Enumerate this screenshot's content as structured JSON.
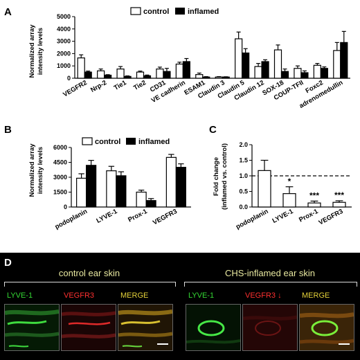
{
  "panel_a": {
    "letter": "A",
    "ylabel_lines": [
      "Normalized array",
      "intensity levels"
    ],
    "legend": [
      "control",
      "inflamed"
    ]
  },
  "panel_b": {
    "letter": "B",
    "ylabel_lines": [
      "Normalized array",
      "intensity levels"
    ],
    "legend": [
      "control",
      "inflamed"
    ]
  },
  "panel_c": {
    "letter": "C",
    "ylabel_lines": [
      "Fold change",
      "(inflamed vs. control)"
    ]
  },
  "panel_d": {
    "letter": "D",
    "groups": [
      {
        "title": "control ear skin",
        "channels": [
          {
            "label": "LYVE-1",
            "color": "#34d834"
          },
          {
            "label": "VEGFR3",
            "color": "#ff3030"
          },
          {
            "label": "MERGE",
            "color": "#e5d23a"
          }
        ]
      },
      {
        "title": "CHS-inflamed ear skin",
        "channels": [
          {
            "label": "LYVE-1",
            "color": "#34d834"
          },
          {
            "label": "VEGFR3 ↓",
            "color": "#ff3030"
          },
          {
            "label": "MERGE",
            "color": "#e5d23a"
          }
        ]
      }
    ]
  },
  "chart_data": [
    {
      "type": "bar",
      "panel": "A",
      "categories": [
        "VEGFR2",
        "Nrp-2",
        "Tie1",
        "Tie2",
        "CD31",
        "VE cadherin",
        "ESAM1",
        "Claudin 3",
        "Claudin 5",
        "Claudin 12",
        "SOX-18",
        "COUP-TFII",
        "Foxc2",
        "adrenomedullin"
      ],
      "series": [
        {
          "name": "control",
          "color": "#ffffff",
          "values": [
            1650,
            600,
            750,
            500,
            750,
            1150,
            300,
            100,
            3200,
            950,
            2300,
            800,
            1050,
            2250
          ],
          "errors": [
            250,
            150,
            200,
            80,
            150,
            150,
            120,
            30,
            550,
            250,
            400,
            200,
            150,
            650
          ]
        },
        {
          "name": "inflamed",
          "color": "#000000",
          "values": [
            500,
            250,
            150,
            200,
            550,
            1350,
            100,
            100,
            2050,
            1350,
            550,
            450,
            800,
            2900
          ],
          "errors": [
            80,
            40,
            40,
            60,
            250,
            250,
            30,
            20,
            350,
            150,
            200,
            150,
            120,
            900
          ]
        }
      ],
      "yticks": [
        0,
        1000,
        2000,
        3000,
        4000,
        5000
      ],
      "ylim": [
        0,
        5000
      ],
      "legend_position": "top-center"
    },
    {
      "type": "bar",
      "panel": "B",
      "categories": [
        "podoplanin",
        "LYVE-1",
        "Prox-1",
        "VEGFR3"
      ],
      "series": [
        {
          "name": "control",
          "color": "#ffffff",
          "values": [
            2900,
            3650,
            1500,
            5000
          ],
          "errors": [
            450,
            450,
            200,
            300
          ]
        },
        {
          "name": "inflamed",
          "color": "#000000",
          "values": [
            4200,
            3150,
            650,
            4000
          ],
          "errors": [
            500,
            400,
            200,
            350
          ]
        }
      ],
      "yticks": [
        0,
        1500,
        3000,
        4500,
        6000
      ],
      "ylim": [
        0,
        6000
      ],
      "legend_position": "top"
    },
    {
      "type": "bar",
      "panel": "C",
      "categories": [
        "podoplanin",
        "LYVE-1",
        "Prox-1",
        "VEGFR3"
      ],
      "series": [
        {
          "color": "#ffffff",
          "values": [
            1.17,
            0.43,
            0.13,
            0.15
          ],
          "errors": [
            0.33,
            0.22,
            0.06,
            0.05
          ]
        }
      ],
      "annotations": [
        "",
        "*",
        "***",
        "***"
      ],
      "reference_line": 1.0,
      "yticks": [
        "0.0",
        "0.5",
        "1.0",
        "1.5",
        "2.0"
      ],
      "ylim": [
        0,
        2.0
      ]
    }
  ]
}
